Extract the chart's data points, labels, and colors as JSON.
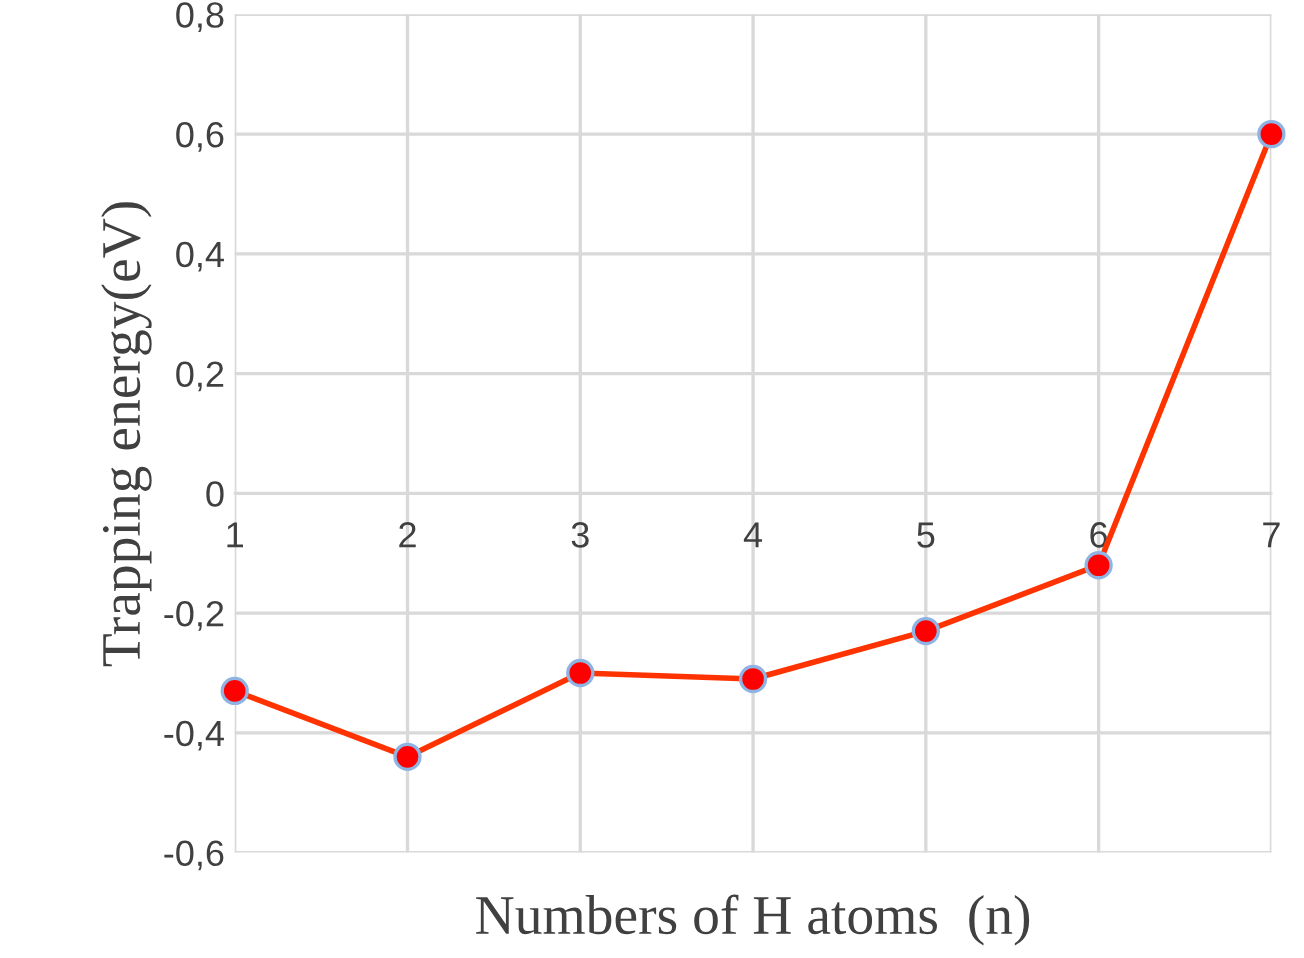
{
  "chart_data": {
    "type": "line",
    "xlabel": "Numbers of H atoms  (n)",
    "ylabel": "Trapping energy(eV)",
    "x": [
      1,
      2,
      3,
      4,
      5,
      6,
      7
    ],
    "series": [
      {
        "color": "#ff3300",
        "values": [
          -0.33,
          -0.44,
          -0.3,
          -0.31,
          -0.23,
          -0.12,
          0.6
        ]
      }
    ],
    "xlim": [
      1,
      7
    ],
    "xticks": [
      1,
      2,
      3,
      4,
      5,
      6,
      7
    ],
    "ylim": [
      -0.6,
      0.8
    ],
    "yticks": [
      {
        "value": -0.6,
        "label": "-0,6"
      },
      {
        "value": -0.4,
        "label": "-0,4"
      },
      {
        "value": -0.2,
        "label": "-0,2"
      },
      {
        "value": 0,
        "label": "0"
      },
      {
        "value": 0.2,
        "label": "0,2"
      },
      {
        "value": 0.4,
        "label": "0,4"
      },
      {
        "value": 0.6,
        "label": "0,6"
      },
      {
        "value": 0.8,
        "label": "0,8"
      }
    ],
    "grid": true,
    "marker": "circle",
    "line_style": "solid"
  }
}
